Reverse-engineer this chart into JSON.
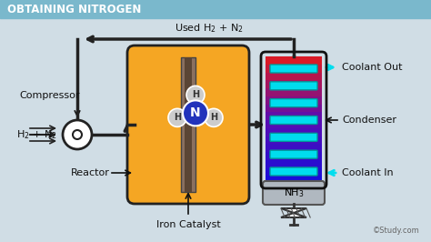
{
  "title": "OBTAINING NITROGEN",
  "title_bg": "#7ab8cc",
  "title_text_color": "#ffffff",
  "bg_color": "#d0dde5",
  "reactor_color": "#f5a623",
  "reactor_outline": "#222222",
  "catalyst_color": "#8a7060",
  "catalyst_outline": "#444444",
  "N_circle_color": "#2233bb",
  "H_circle_color": "#cccccc",
  "condenser_tube_color": "#00ddee",
  "condenser_body_outline": "#111111",
  "compressor_color": "#ffffff",
  "compressor_outline": "#222222",
  "arrow_color": "#222222",
  "nh3_box_color": "#b0b8c0",
  "pipe_color": "#222222",
  "labels": {
    "title": "OBTAINING NITROGEN",
    "used_h2n2": "Used H$_2$ + N$_2$",
    "compressor": "Compressor",
    "h2n2": "H$_2$ + N$_2$",
    "reactor": "Reactor",
    "iron_catalyst": "Iron Catalyst",
    "coolant_out": "Coolant Out",
    "condenser": "Condenser",
    "coolant_in": "Coolant In",
    "nh3": "NH$_3$",
    "N_label": "N",
    "H_label": "H"
  },
  "study_watermark": "©Study.com"
}
